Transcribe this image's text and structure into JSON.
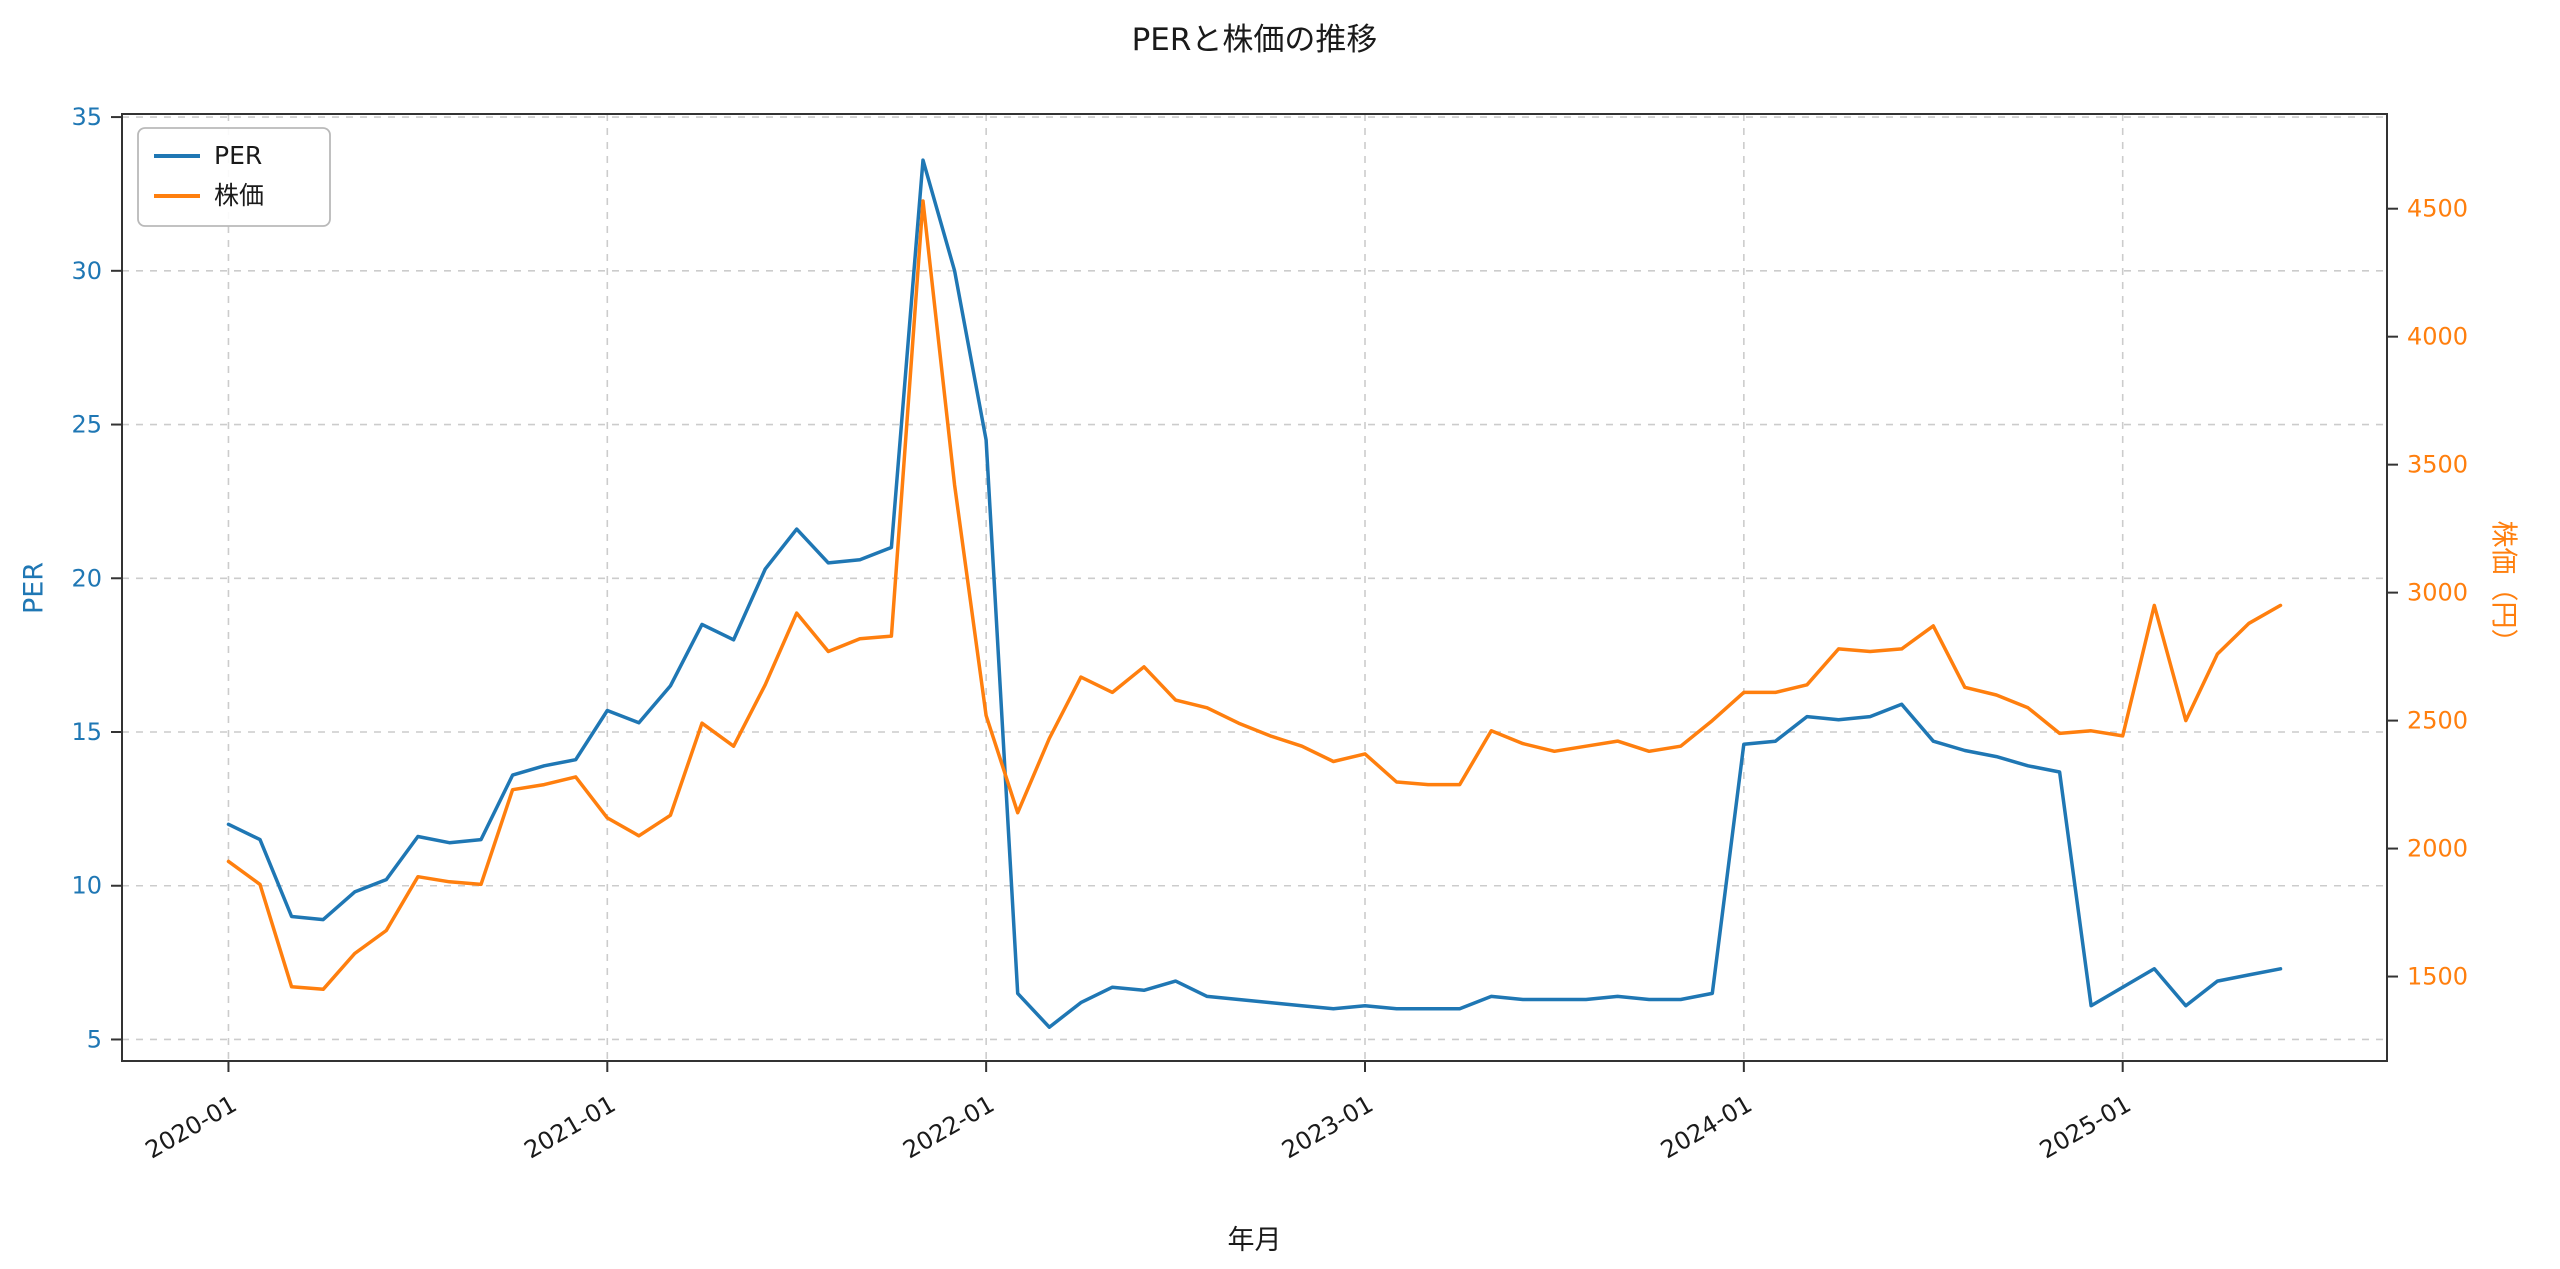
{
  "chart_data": {
    "type": "line",
    "title": "PERと株価の推移",
    "xlabel": "年月",
    "ylabel_left": "PER",
    "ylabel_right": "株価（円）",
    "grid": true,
    "legend": {
      "position": "top-left",
      "entries": [
        "PER",
        "株価"
      ]
    },
    "x": [
      "2020-01",
      "2020-02",
      "2020-03",
      "2020-04",
      "2020-05",
      "2020-06",
      "2020-07",
      "2020-08",
      "2020-09",
      "2020-10",
      "2020-11",
      "2020-12",
      "2021-01",
      "2021-02",
      "2021-03",
      "2021-04",
      "2021-05",
      "2021-06",
      "2021-07",
      "2021-08",
      "2021-09",
      "2021-10",
      "2021-11",
      "2021-12",
      "2022-01",
      "2022-02",
      "2022-03",
      "2022-04",
      "2022-05",
      "2022-06",
      "2022-07",
      "2022-08",
      "2022-09",
      "2022-10",
      "2022-11",
      "2022-12",
      "2023-01",
      "2023-02",
      "2023-03",
      "2023-04",
      "2023-05",
      "2023-06",
      "2023-07",
      "2023-08",
      "2023-09",
      "2023-10",
      "2023-11",
      "2023-12",
      "2024-01",
      "2024-02",
      "2024-03",
      "2024-04",
      "2024-05",
      "2024-06",
      "2024-07",
      "2024-08",
      "2024-09",
      "2024-10",
      "2024-11",
      "2024-12",
      "2025-01",
      "2025-02",
      "2025-03",
      "2025-04",
      "2025-05",
      "2025-06"
    ],
    "x_tick_indices": [
      0,
      12,
      24,
      36,
      48,
      60
    ],
    "x_tick_labels": [
      "2020-01",
      "2021-01",
      "2022-01",
      "2023-01",
      "2024-01",
      "2025-01"
    ],
    "left_axis": {
      "min": 4.3,
      "max": 35.1,
      "ticks": [
        5,
        10,
        15,
        20,
        25,
        30,
        35
      ],
      "color": "#1f77b4"
    },
    "right_axis": {
      "min": 1170,
      "max": 4870,
      "ticks": [
        1500,
        2000,
        2500,
        3000,
        3500,
        4000,
        4500
      ],
      "color": "#ff7f0e"
    },
    "series": [
      {
        "name": "PER",
        "axis": "left",
        "color": "#1f77b4",
        "values": [
          12.0,
          11.5,
          9.0,
          8.9,
          9.8,
          10.2,
          11.6,
          11.4,
          11.5,
          13.6,
          13.9,
          14.1,
          15.7,
          15.3,
          16.5,
          18.5,
          18.0,
          20.3,
          21.6,
          20.5,
          20.6,
          21.0,
          33.6,
          30.0,
          24.5,
          6.5,
          5.4,
          6.2,
          6.7,
          6.6,
          6.9,
          6.4,
          6.3,
          6.2,
          6.1,
          6.0,
          6.1,
          6.0,
          6.0,
          6.0,
          6.4,
          6.3,
          6.3,
          6.3,
          6.4,
          6.3,
          6.3,
          6.5,
          14.6,
          14.7,
          15.5,
          15.4,
          15.5,
          15.9,
          14.7,
          14.4,
          14.2,
          13.9,
          13.7,
          6.1,
          6.7,
          7.3,
          6.1,
          6.9,
          7.1,
          7.3
        ]
      },
      {
        "name": "株価",
        "axis": "right",
        "color": "#ff7f0e",
        "values": [
          1950,
          1860,
          1460,
          1450,
          1590,
          1680,
          1890,
          1870,
          1860,
          2230,
          2250,
          2280,
          2120,
          2050,
          2130,
          2490,
          2400,
          2640,
          2920,
          2770,
          2820,
          2830,
          4530,
          3420,
          2520,
          2140,
          2430,
          2670,
          2610,
          2710,
          2580,
          2550,
          2490,
          2440,
          2400,
          2340,
          2370,
          2260,
          2250,
          2250,
          2460,
          2410,
          2380,
          2400,
          2420,
          2380,
          2400,
          2500,
          2610,
          2610,
          2640,
          2780,
          2770,
          2780,
          2870,
          2630,
          2600,
          2550,
          2450,
          2460,
          2440,
          2950,
          2500,
          2760,
          2880,
          2950
        ]
      }
    ],
    "style": {
      "grid_color": "#cccccc",
      "spine_color": "#333333",
      "tick_label_color": "#1a1a1a",
      "background": "#ffffff",
      "legend_border": "#b9b9b9"
    }
  }
}
